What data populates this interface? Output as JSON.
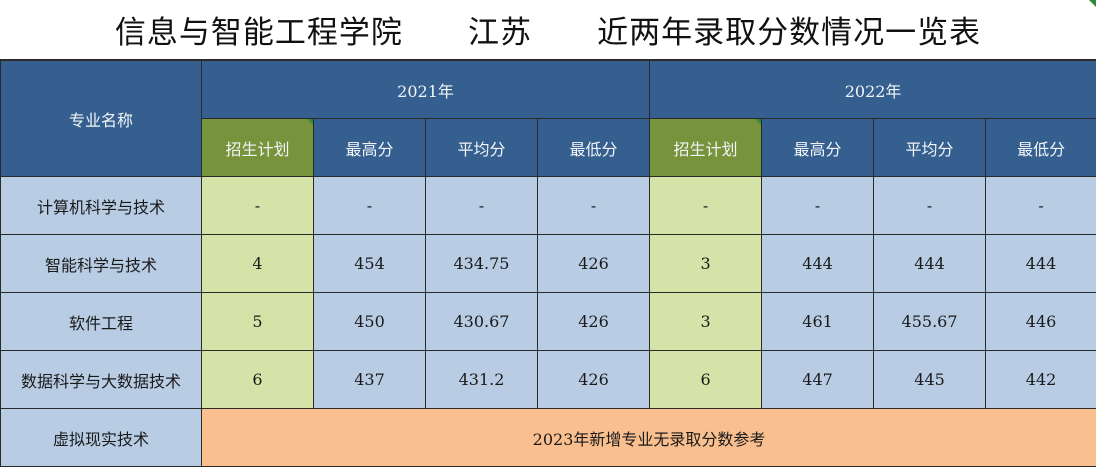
{
  "title": "信息与智能工程学院      江苏      近两年录取分数情况一览表",
  "header": {
    "major_col": "专业名称",
    "years": [
      "2021年",
      "2022年"
    ],
    "sub_cols": [
      "招生计划",
      "最高分",
      "平均分",
      "最低分"
    ]
  },
  "rows": [
    {
      "major": "计算机科学与技术",
      "y2021": [
        "-",
        "-",
        "-",
        "-"
      ],
      "y2022": [
        "-",
        "-",
        "-",
        "-"
      ]
    },
    {
      "major": "智能科学与技术",
      "y2021": [
        "4",
        "454",
        "434.75",
        "426"
      ],
      "y2022": [
        "3",
        "444",
        "444",
        "444"
      ]
    },
    {
      "major": "软件工程",
      "y2021": [
        "5",
        "450",
        "430.67",
        "426"
      ],
      "y2022": [
        "3",
        "461",
        "455.67",
        "446"
      ]
    },
    {
      "major": "数据科学与大数据技术",
      "y2021": [
        "6",
        "437",
        "431.2",
        "426"
      ],
      "y2022": [
        "6",
        "447",
        "445",
        "442"
      ]
    }
  ],
  "last_row": {
    "major": "虚拟现实技术",
    "note": "2023年新增专业无录取分数参考"
  },
  "colors": {
    "header_blue": "#355f8f",
    "plan_green": "#77933c",
    "cell_blue": "#b8cce4",
    "cell_green": "#d6e3a8",
    "note_orange": "#f9bf8f"
  }
}
